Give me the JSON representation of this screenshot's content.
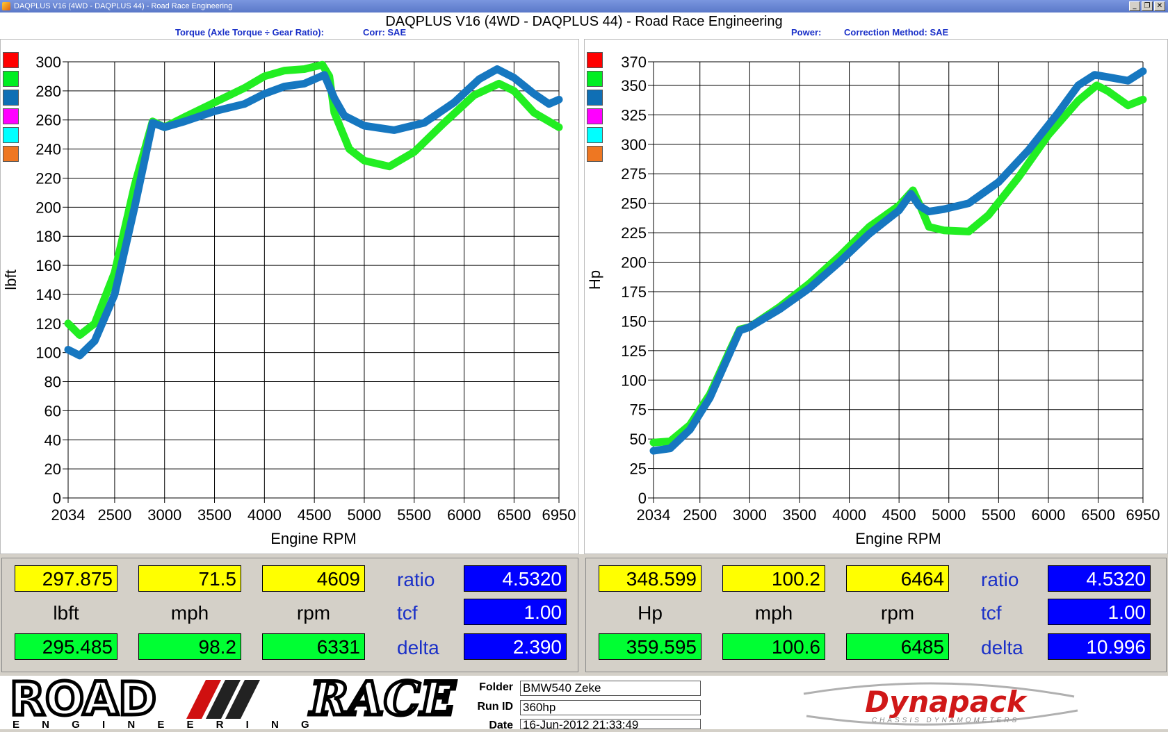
{
  "window": {
    "title": "DAQPLUS V16 (4WD - DAQPLUS 44) - Road Race Engineering"
  },
  "header": {
    "title": "DAQPLUS V16 (4WD - DAQPLUS 44) - Road Race Engineering",
    "left_subtitle_1": "Torque (Axle Torque ÷ Gear Ratio):",
    "left_subtitle_2": "Corr: SAE",
    "right_subtitle_1": "Power:",
    "right_subtitle_2": "Correction Method: SAE"
  },
  "colors": {
    "green_series": "#22ee22",
    "blue_series": "#1677c0",
    "swatches": [
      "#ff0000",
      "#00ee22",
      "#0f6fb5",
      "#ff00ff",
      "#00ffff",
      "#ee7722"
    ]
  },
  "chart_data": [
    {
      "type": "line",
      "xlabel": "Engine RPM",
      "ylabel": "lbft",
      "xlim": [
        2034,
        6950
      ],
      "ylim": [
        0,
        300
      ],
      "xticks": [
        2034,
        2500,
        3000,
        3500,
        4000,
        4500,
        5000,
        5500,
        6000,
        6500,
        6950
      ],
      "yticks": [
        0,
        20,
        40,
        60,
        80,
        100,
        120,
        140,
        160,
        180,
        200,
        220,
        240,
        260,
        280,
        300
      ],
      "grid": true,
      "series": [
        {
          "color": "#22ee22",
          "x": [
            2034,
            2150,
            2300,
            2500,
            2700,
            2880,
            3000,
            3200,
            3500,
            3800,
            4000,
            4200,
            4400,
            4580,
            4650,
            4700,
            4850,
            5000,
            5250,
            5500,
            5800,
            6100,
            6350,
            6500,
            6700,
            6950
          ],
          "y": [
            120,
            112,
            120,
            155,
            215,
            259,
            255,
            262,
            272,
            282,
            290,
            294,
            295,
            298,
            290,
            265,
            240,
            232,
            228,
            238,
            258,
            277,
            285,
            280,
            265,
            255
          ]
        },
        {
          "color": "#1677c0",
          "x": [
            2034,
            2150,
            2300,
            2500,
            2700,
            2880,
            3000,
            3200,
            3500,
            3800,
            4000,
            4200,
            4400,
            4600,
            4700,
            4800,
            5000,
            5300,
            5600,
            5900,
            6150,
            6331,
            6500,
            6700,
            6850,
            6950
          ],
          "y": [
            102,
            98,
            108,
            140,
            200,
            258,
            255,
            259,
            266,
            271,
            278,
            283,
            285,
            291,
            275,
            263,
            256,
            253,
            258,
            272,
            288,
            295,
            289,
            278,
            271,
            274
          ]
        }
      ]
    },
    {
      "type": "line",
      "xlabel": "Engine RPM",
      "ylabel": "Hp",
      "xlim": [
        2034,
        6950
      ],
      "ylim": [
        0,
        370
      ],
      "xticks": [
        2034,
        2500,
        3000,
        3500,
        4000,
        4500,
        5000,
        5500,
        6000,
        6500,
        6950
      ],
      "yticks": [
        0,
        25,
        50,
        75,
        100,
        125,
        150,
        175,
        200,
        225,
        250,
        275,
        300,
        325,
        350,
        370
      ],
      "grid": true,
      "series": [
        {
          "color": "#22ee22",
          "x": [
            2034,
            2200,
            2400,
            2600,
            2800,
            2900,
            3000,
            3300,
            3600,
            3900,
            4200,
            4500,
            4640,
            4700,
            4800,
            4950,
            5200,
            5400,
            5700,
            6000,
            6300,
            6485,
            6600,
            6800,
            6950
          ],
          "y": [
            47,
            48,
            62,
            88,
            125,
            143,
            145,
            162,
            182,
            205,
            230,
            248,
            261,
            250,
            230,
            227,
            226,
            240,
            272,
            308,
            337,
            350,
            345,
            333,
            338
          ]
        },
        {
          "color": "#1677c0",
          "x": [
            2034,
            2200,
            2400,
            2600,
            2800,
            2900,
            3000,
            3300,
            3600,
            3900,
            4200,
            4500,
            4620,
            4700,
            4800,
            4950,
            5200,
            5500,
            5800,
            6100,
            6300,
            6464,
            6600,
            6800,
            6950
          ],
          "y": [
            40,
            42,
            58,
            85,
            123,
            142,
            145,
            160,
            178,
            200,
            224,
            244,
            258,
            248,
            243,
            245,
            250,
            268,
            295,
            327,
            350,
            359,
            357,
            354,
            362
          ]
        }
      ]
    }
  ],
  "readout_left": {
    "yellow": [
      "297.875",
      "71.5",
      "4609"
    ],
    "units": [
      "lbft",
      "mph",
      "rpm"
    ],
    "green": [
      "295.485",
      "98.2",
      "6331"
    ],
    "labels": [
      "ratio",
      "tcf",
      "delta"
    ],
    "blue": [
      "4.5320",
      "1.00",
      "2.390"
    ]
  },
  "readout_right": {
    "yellow": [
      "348.599",
      "100.2",
      "6464"
    ],
    "units": [
      "Hp",
      "mph",
      "rpm"
    ],
    "green": [
      "359.595",
      "100.6",
      "6485"
    ],
    "labels": [
      "ratio",
      "tcf",
      "delta"
    ],
    "blue": [
      "4.5320",
      "1.00",
      "10.996"
    ]
  },
  "footer": {
    "logo_left_top": "ROAD",
    "logo_left_right": "RACE",
    "logo_left_sub": "E N G I N E E R I N G",
    "labels": [
      "Folder",
      "Run ID",
      "Date"
    ],
    "values": [
      "BMW540 Zeke",
      "360hp",
      "16-Jun-2012  21:33:49"
    ],
    "logo_right": "Dynapack",
    "logo_right_sub": "CHASSIS DYNAMOMETERS"
  }
}
